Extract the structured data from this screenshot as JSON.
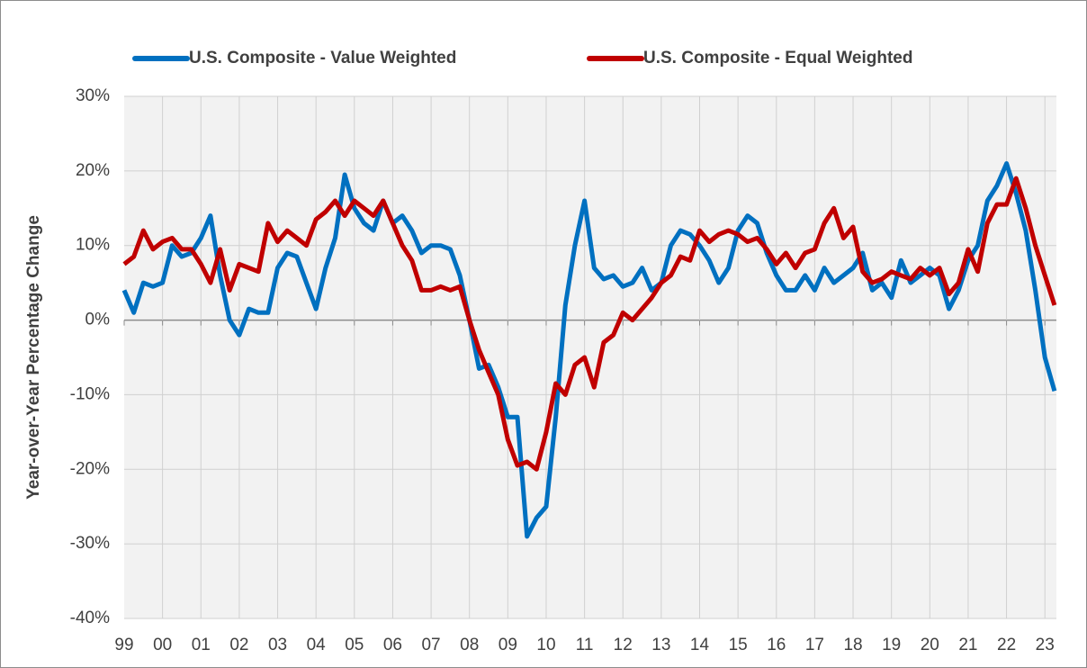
{
  "chart_data": {
    "type": "line",
    "y_label": "Year-over-Year Percentage Change",
    "x": [
      1999,
      1999.25,
      1999.5,
      1999.75,
      2000,
      2000.25,
      2000.5,
      2000.75,
      2001,
      2001.25,
      2001.5,
      2001.75,
      2002,
      2002.25,
      2002.5,
      2002.75,
      2003,
      2003.25,
      2003.5,
      2003.75,
      2004,
      2004.25,
      2004.5,
      2004.75,
      2005,
      2005.25,
      2005.5,
      2005.75,
      2006,
      2006.25,
      2006.5,
      2006.75,
      2007,
      2007.25,
      2007.5,
      2007.75,
      2008,
      2008.25,
      2008.5,
      2008.75,
      2009,
      2009.25,
      2009.5,
      2009.75,
      2010,
      2010.25,
      2010.5,
      2010.75,
      2011,
      2011.25,
      2011.5,
      2011.75,
      2012,
      2012.25,
      2012.5,
      2012.75,
      2013,
      2013.25,
      2013.5,
      2013.75,
      2014,
      2014.25,
      2014.5,
      2014.75,
      2015,
      2015.25,
      2015.5,
      2015.75,
      2016,
      2016.25,
      2016.5,
      2016.75,
      2017,
      2017.25,
      2017.5,
      2017.75,
      2018,
      2018.25,
      2018.5,
      2018.75,
      2019,
      2019.25,
      2019.5,
      2019.75,
      2020,
      2020.25,
      2020.5,
      2020.75,
      2021,
      2021.25,
      2021.5,
      2021.75,
      2022,
      2022.25,
      2022.5,
      2022.75,
      2023,
      2023.25
    ],
    "series": [
      {
        "name": "U.S. Composite - Value Weighted",
        "color": "#0070c0",
        "values": [
          4,
          1,
          5,
          4.5,
          5,
          10,
          8.5,
          9,
          11,
          14,
          6,
          0,
          -2,
          1.5,
          1,
          1,
          7,
          9,
          8.5,
          5,
          1.5,
          7,
          11,
          19.5,
          15,
          13,
          12,
          16,
          13,
          14,
          12,
          9,
          10,
          10,
          9.5,
          6,
          0,
          -6.5,
          -6,
          -9,
          -13,
          -13,
          -29,
          -26.5,
          -25,
          -13,
          2,
          10,
          16,
          7,
          5.5,
          6,
          4.5,
          5,
          7,
          4,
          5,
          10,
          12,
          11.5,
          10,
          8,
          5,
          7,
          12,
          14,
          13,
          9,
          6,
          4,
          4,
          6,
          4,
          7,
          5,
          6,
          7,
          9,
          4,
          5,
          3,
          8,
          5,
          6,
          7,
          6,
          1.5,
          4,
          8,
          10,
          16,
          18,
          21,
          17,
          12,
          4,
          -5,
          -9.5
        ]
      },
      {
        "name": "U.S. Composite - Equal Weighted",
        "color": "#c00000",
        "values": [
          7.5,
          8.5,
          12,
          9.5,
          10.5,
          11,
          9.5,
          9.5,
          7.5,
          5,
          9.5,
          4,
          7.5,
          7,
          6.5,
          13,
          10.5,
          12,
          11,
          10,
          13.5,
          14.5,
          16,
          14,
          16,
          15,
          14,
          16,
          13,
          10,
          8,
          4,
          4,
          4.5,
          4,
          4.5,
          0,
          -4,
          -7,
          -10,
          -16,
          -19.5,
          -19,
          -20,
          -15,
          -8.5,
          -10,
          -6,
          -5,
          -9,
          -3,
          -2,
          1,
          0,
          1.5,
          3,
          5,
          6,
          8.5,
          8,
          12,
          10.5,
          11.5,
          12,
          11.5,
          10.5,
          11,
          9.5,
          7.5,
          9,
          7,
          9,
          9.5,
          13,
          15,
          11,
          12.5,
          6.5,
          5,
          5.5,
          6.5,
          6,
          5.5,
          7,
          6,
          7,
          3.5,
          5,
          9.5,
          6.5,
          13,
          15.5,
          15.5,
          19,
          15,
          10,
          6,
          2
        ]
      }
    ],
    "xlim": [
      1999,
      2023.3
    ],
    "xticks": [
      {
        "value": 1999,
        "label": "99"
      },
      {
        "value": 2000,
        "label": "00"
      },
      {
        "value": 2001,
        "label": "01"
      },
      {
        "value": 2002,
        "label": "02"
      },
      {
        "value": 2003,
        "label": "03"
      },
      {
        "value": 2004,
        "label": "04"
      },
      {
        "value": 2005,
        "label": "05"
      },
      {
        "value": 2006,
        "label": "06"
      },
      {
        "value": 2007,
        "label": "07"
      },
      {
        "value": 2008,
        "label": "08"
      },
      {
        "value": 2009,
        "label": "09"
      },
      {
        "value": 2010,
        "label": "10"
      },
      {
        "value": 2011,
        "label": "11"
      },
      {
        "value": 2012,
        "label": "12"
      },
      {
        "value": 2013,
        "label": "13"
      },
      {
        "value": 2014,
        "label": "14"
      },
      {
        "value": 2015,
        "label": "15"
      },
      {
        "value": 2016,
        "label": "16"
      },
      {
        "value": 2017,
        "label": "17"
      },
      {
        "value": 2018,
        "label": "18"
      },
      {
        "value": 2019,
        "label": "19"
      },
      {
        "value": 2020,
        "label": "20"
      },
      {
        "value": 2021,
        "label": "21"
      },
      {
        "value": 2022,
        "label": "22"
      },
      {
        "value": 2023,
        "label": "23"
      }
    ],
    "ylim": [
      -40,
      30
    ],
    "yticks": [
      {
        "value": -40,
        "label": "-40%"
      },
      {
        "value": -30,
        "label": "-30%"
      },
      {
        "value": -20,
        "label": "-20%"
      },
      {
        "value": -10,
        "label": "-10%"
      },
      {
        "value": 0,
        "label": "0%"
      },
      {
        "value": 10,
        "label": "10%"
      },
      {
        "value": 20,
        "label": "20%"
      },
      {
        "value": 30,
        "label": "30%"
      }
    ],
    "grid": true,
    "legend": "top"
  }
}
